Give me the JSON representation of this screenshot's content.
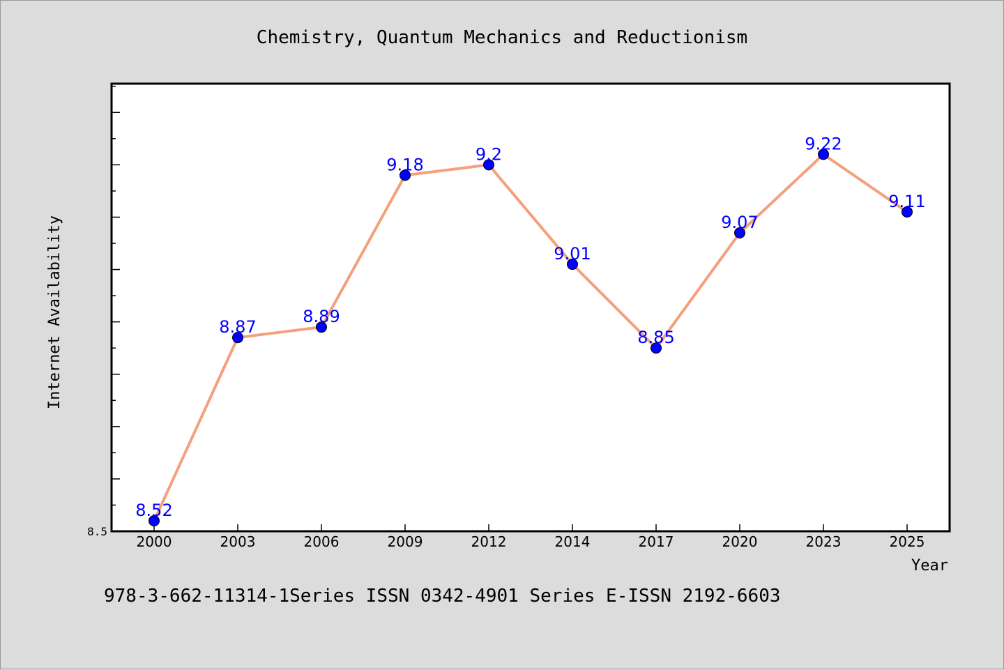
{
  "chart_data": {
    "type": "line",
    "title": "Chemistry, Quantum Mechanics and Reductionism",
    "xlabel": "Year",
    "ylabel": "Internet Availability",
    "categories": [
      "2000",
      "2003",
      "2006",
      "2009",
      "2012",
      "2014",
      "2017",
      "2020",
      "2023",
      "2025"
    ],
    "values": [
      8.52,
      8.87,
      8.89,
      9.18,
      9.2,
      9.01,
      8.85,
      9.07,
      9.22,
      9.11
    ],
    "data_labels": [
      "8.52",
      "8.87",
      "8.89",
      "9.18",
      "9.2",
      "9.01",
      "8.85",
      "9.07",
      "9.22",
      "9.11"
    ],
    "ylim": [
      8.5,
      9.355
    ],
    "y_tick_labels": [
      "8.5"
    ],
    "y_minor_tick_step": 0.05,
    "grid": false,
    "line_color": "#f4a07c",
    "marker_color": "#0000ff",
    "label_color": "#0000ff",
    "plot_background": "#ffffff",
    "page_background": "#dcdcdc"
  },
  "footer": {
    "text": "978-3-662-11314-1Series ISSN 0342-4901 Series E-ISSN 2192-6603"
  }
}
